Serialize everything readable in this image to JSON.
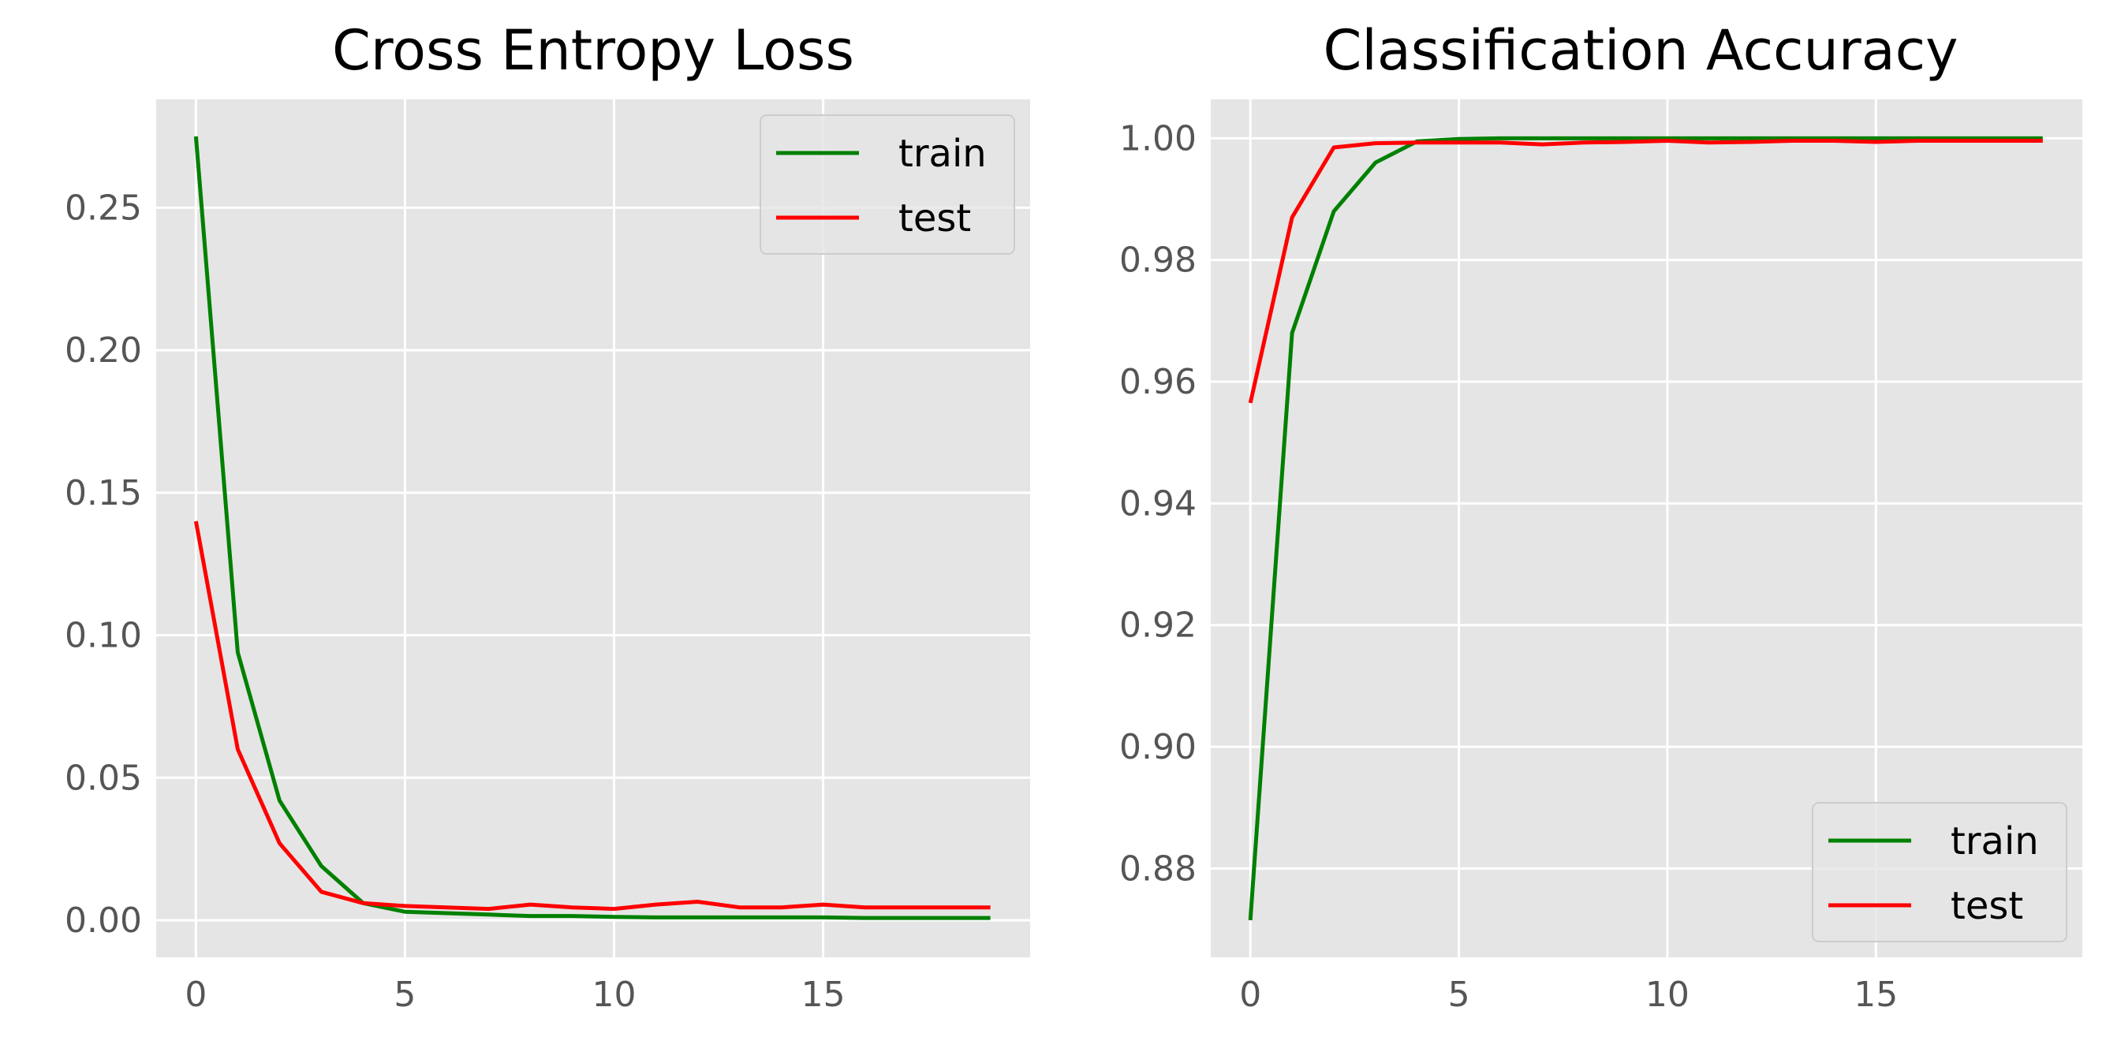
{
  "chart_data": [
    {
      "type": "line",
      "title": "Cross Entropy Loss",
      "xlabel": "",
      "ylabel": "",
      "x": [
        0,
        1,
        2,
        3,
        4,
        5,
        6,
        7,
        8,
        9,
        10,
        11,
        12,
        13,
        14,
        15,
        16,
        17,
        18,
        19
      ],
      "xlim": [
        -0.95,
        19.95
      ],
      "ylim": [
        -0.013,
        0.288
      ],
      "xticks": [
        0,
        5,
        10,
        15
      ],
      "xtick_labels": [
        "0",
        "5",
        "10",
        "15"
      ],
      "yticks": [
        0.0,
        0.05,
        0.1,
        0.15,
        0.2,
        0.25
      ],
      "ytick_labels": [
        "0.00",
        "0.05",
        "0.10",
        "0.15",
        "0.20",
        "0.25"
      ],
      "grid": true,
      "legend": "upper right",
      "series": [
        {
          "name": "train",
          "color": "#008000",
          "values": [
            0.275,
            0.094,
            0.042,
            0.019,
            0.006,
            0.003,
            0.0025,
            0.002,
            0.0015,
            0.0015,
            0.0012,
            0.001,
            0.001,
            0.001,
            0.001,
            0.001,
            0.0008,
            0.0008,
            0.0008,
            0.0008
          ]
        },
        {
          "name": "test",
          "color": "#ff0000",
          "values": [
            0.14,
            0.06,
            0.027,
            0.01,
            0.006,
            0.005,
            0.0045,
            0.004,
            0.0055,
            0.0045,
            0.004,
            0.0055,
            0.0065,
            0.0045,
            0.0045,
            0.0055,
            0.0045,
            0.0045,
            0.0045,
            0.0045
          ]
        }
      ]
    },
    {
      "type": "line",
      "title": "Classification Accuracy",
      "xlabel": "",
      "ylabel": "",
      "x": [
        0,
        1,
        2,
        3,
        4,
        5,
        6,
        7,
        8,
        9,
        10,
        11,
        12,
        13,
        14,
        15,
        16,
        17,
        18,
        19
      ],
      "xlim": [
        -0.95,
        19.95
      ],
      "ylim": [
        0.8654,
        1.0064
      ],
      "xticks": [
        0,
        5,
        10,
        15
      ],
      "xtick_labels": [
        "0",
        "5",
        "10",
        "15"
      ],
      "yticks": [
        0.88,
        0.9,
        0.92,
        0.94,
        0.96,
        0.98,
        1.0
      ],
      "ytick_labels": [
        "0.88",
        "0.90",
        "0.92",
        "0.94",
        "0.96",
        "0.98",
        "1.00"
      ],
      "grid": true,
      "legend": "lower right",
      "series": [
        {
          "name": "train",
          "color": "#008000",
          "values": [
            0.8715,
            0.968,
            0.988,
            0.996,
            0.9995,
            0.9999,
            1.0,
            1.0,
            1.0,
            1.0,
            1.0,
            1.0,
            1.0,
            1.0,
            1.0,
            1.0,
            1.0,
            1.0,
            1.0,
            1.0
          ]
        },
        {
          "name": "test",
          "color": "#ff0000",
          "values": [
            0.9565,
            0.987,
            0.9985,
            0.9992,
            0.9993,
            0.9993,
            0.9993,
            0.999,
            0.9993,
            0.9994,
            0.9996,
            0.9993,
            0.9994,
            0.9996,
            0.9996,
            0.9994,
            0.9996,
            0.9996,
            0.9996,
            0.9996
          ]
        }
      ]
    }
  ]
}
